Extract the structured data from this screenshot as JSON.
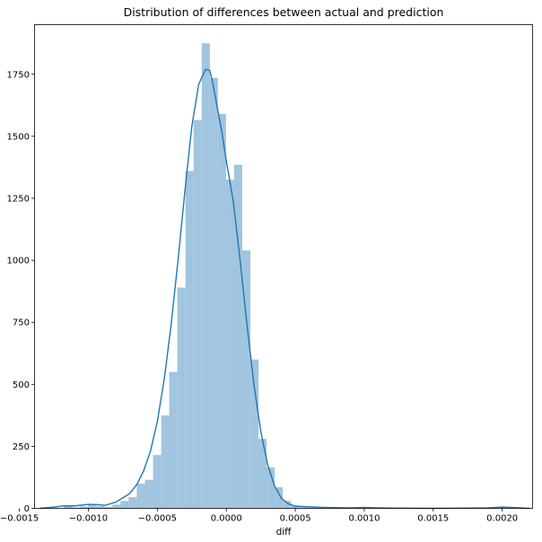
{
  "chart_data": {
    "type": "bar",
    "title": "Distribution of differences between actual and prediction",
    "xlabel": "diff",
    "ylabel": "",
    "xlim": [
      -0.00139,
      0.00222
    ],
    "ylim": [
      0,
      1950
    ],
    "grid": false,
    "bar_color": "#a1c4df",
    "kde_color": "#1f77b4",
    "x_ticks": [
      -0.0015,
      -0.001,
      -0.0005,
      0.0,
      0.0005,
      0.001,
      0.0015,
      0.002
    ],
    "x_tick_labels": [
      "−0.0015",
      "−0.0010",
      "−0.0005",
      "0.0000",
      "0.0005",
      "0.0010",
      "0.0015",
      "0.0020"
    ],
    "y_ticks": [
      0,
      250,
      500,
      750,
      1000,
      1250,
      1500,
      1750
    ],
    "y_tick_labels": [
      "0",
      "250",
      "500",
      "750",
      "1000",
      "1250",
      "1500",
      "1750"
    ],
    "bin_width": 5.88e-05,
    "bins": [
      {
        "x": -0.001355,
        "count": 0
      },
      {
        "x": -0.001296,
        "count": 0
      },
      {
        "x": -0.001237,
        "count": 0
      },
      {
        "x": -0.001178,
        "count": 8
      },
      {
        "x": -0.00112,
        "count": 4
      },
      {
        "x": -0.001061,
        "count": 8
      },
      {
        "x": -0.001002,
        "count": 15
      },
      {
        "x": -0.000943,
        "count": 10
      },
      {
        "x": -0.000884,
        "count": 6
      },
      {
        "x": -0.000825,
        "count": 15
      },
      {
        "x": -0.000767,
        "count": 30
      },
      {
        "x": -0.000708,
        "count": 45
      },
      {
        "x": -0.000649,
        "count": 100
      },
      {
        "x": -0.00059,
        "count": 115
      },
      {
        "x": -0.000531,
        "count": 215
      },
      {
        "x": -0.000472,
        "count": 375
      },
      {
        "x": -0.000414,
        "count": 550
      },
      {
        "x": -0.000355,
        "count": 890
      },
      {
        "x": -0.000296,
        "count": 1360
      },
      {
        "x": -0.000237,
        "count": 1565
      },
      {
        "x": -0.000178,
        "count": 1875
      },
      {
        "x": -0.00012,
        "count": 1735
      },
      {
        "x": -6.1e-05,
        "count": 1590
      },
      {
        "x": -2e-06,
        "count": 1325
      },
      {
        "x": 5.7e-05,
        "count": 1385
      },
      {
        "x": 0.000116,
        "count": 1040
      },
      {
        "x": 0.000175,
        "count": 600
      },
      {
        "x": 0.000233,
        "count": 280
      },
      {
        "x": 0.000292,
        "count": 165
      },
      {
        "x": 0.000351,
        "count": 85
      },
      {
        "x": 0.00041,
        "count": 30
      },
      {
        "x": 0.000469,
        "count": 10
      },
      {
        "x": 0.000528,
        "count": 4
      },
      {
        "x": 0.000586,
        "count": 3
      },
      {
        "x": 0.000645,
        "count": 2
      },
      {
        "x": 0.000704,
        "count": 1
      },
      {
        "x": 0.000763,
        "count": 1
      },
      {
        "x": 0.000822,
        "count": 0
      },
      {
        "x": 0.00088,
        "count": 0
      },
      {
        "x": 0.000939,
        "count": 2
      },
      {
        "x": 0.000998,
        "count": 3
      },
      {
        "x": 0.001057,
        "count": 2
      },
      {
        "x": 0.001116,
        "count": 1
      },
      {
        "x": 0.001175,
        "count": 1
      },
      {
        "x": 0.001233,
        "count": 0
      },
      {
        "x": 0.001292,
        "count": 0
      },
      {
        "x": 0.001351,
        "count": 0
      },
      {
        "x": 0.00141,
        "count": 0
      },
      {
        "x": 0.001469,
        "count": 0
      },
      {
        "x": 0.001528,
        "count": 0
      },
      {
        "x": 0.001586,
        "count": 0
      },
      {
        "x": 0.001645,
        "count": 0
      },
      {
        "x": 0.001704,
        "count": 0
      },
      {
        "x": 0.001763,
        "count": 0
      },
      {
        "x": 0.001822,
        "count": 0
      },
      {
        "x": 0.00188,
        "count": 0
      },
      {
        "x": 0.001939,
        "count": 2
      },
      {
        "x": 0.001998,
        "count": 3
      },
      {
        "x": 0.002057,
        "count": 2
      },
      {
        "x": 0.002116,
        "count": 1
      }
    ],
    "kde": [
      [
        -0.00135,
        0
      ],
      [
        -0.00125,
        5
      ],
      [
        -0.00118,
        10
      ],
      [
        -0.0011,
        10
      ],
      [
        -0.001,
        16
      ],
      [
        -0.00093,
        15
      ],
      [
        -0.00088,
        12
      ],
      [
        -0.0008,
        25
      ],
      [
        -0.0007,
        60
      ],
      [
        -0.00065,
        95
      ],
      [
        -0.0006,
        150
      ],
      [
        -0.00055,
        230
      ],
      [
        -0.0005,
        350
      ],
      [
        -0.00045,
        520
      ],
      [
        -0.0004,
        740
      ],
      [
        -0.00035,
        1000
      ],
      [
        -0.0003,
        1280
      ],
      [
        -0.00025,
        1540
      ],
      [
        -0.0002,
        1710
      ],
      [
        -0.00015,
        1770
      ],
      [
        -0.00012,
        1765
      ],
      [
        -0.0001,
        1720
      ],
      [
        -7e-05,
        1630
      ],
      [
        -3e-05,
        1510
      ],
      [
        0.0,
        1400
      ],
      [
        5e-05,
        1240
      ],
      [
        0.0001,
        1000
      ],
      [
        0.00015,
        740
      ],
      [
        0.0002,
        500
      ],
      [
        0.00025,
        310
      ],
      [
        0.0003,
        175
      ],
      [
        0.00035,
        90
      ],
      [
        0.0004,
        40
      ],
      [
        0.00045,
        18
      ],
      [
        0.0005,
        9
      ],
      [
        0.0006,
        6
      ],
      [
        0.0007,
        4
      ],
      [
        0.0008,
        3
      ],
      [
        0.0009,
        2
      ],
      [
        0.001,
        4
      ],
      [
        0.0011,
        2
      ],
      [
        0.0012,
        1
      ],
      [
        0.0015,
        0
      ],
      [
        0.0019,
        2
      ],
      [
        0.002,
        5
      ],
      [
        0.0021,
        3
      ],
      [
        0.0022,
        0
      ]
    ]
  }
}
